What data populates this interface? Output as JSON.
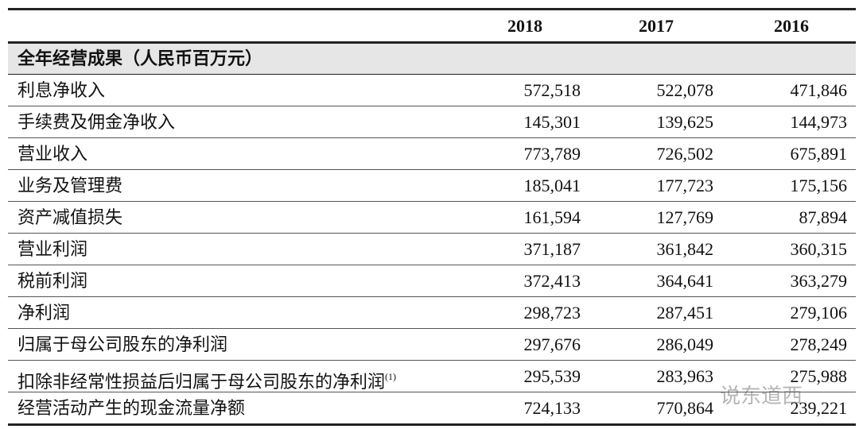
{
  "header": {
    "columns": [
      "2018",
      "2017",
      "2016"
    ]
  },
  "section": "全年经营成果（人民币百万元）",
  "rows": [
    {
      "label": "利息净收入",
      "values": [
        "572,518",
        "522,078",
        "471,846"
      ]
    },
    {
      "label": "手续费及佣金净收入",
      "values": [
        "145,301",
        "139,625",
        "144,973"
      ]
    },
    {
      "label": "营业收入",
      "values": [
        "773,789",
        "726,502",
        "675,891"
      ]
    },
    {
      "label": "业务及管理费",
      "values": [
        "185,041",
        "177,723",
        "175,156"
      ]
    },
    {
      "label": "资产减值损失",
      "values": [
        "161,594",
        "127,769",
        "87,894"
      ]
    },
    {
      "label": "营业利润",
      "values": [
        "371,187",
        "361,842",
        "360,315"
      ]
    },
    {
      "label": "税前利润",
      "values": [
        "372,413",
        "364,641",
        "363,279"
      ]
    },
    {
      "label": "净利润",
      "values": [
        "298,723",
        "287,451",
        "279,106"
      ]
    },
    {
      "label": "归属于母公司股东的净利润",
      "values": [
        "297,676",
        "286,049",
        "278,249"
      ]
    },
    {
      "label": "扣除非经常性损益后归属于母公司股东的净利润",
      "note": "(1)",
      "values": [
        "295,539",
        "283,963",
        "275,988"
      ]
    },
    {
      "label": "经营活动产生的现金流量净额",
      "values": [
        "724,133",
        "770,864",
        "239,221"
      ]
    }
  ],
  "watermark": "说东道西"
}
